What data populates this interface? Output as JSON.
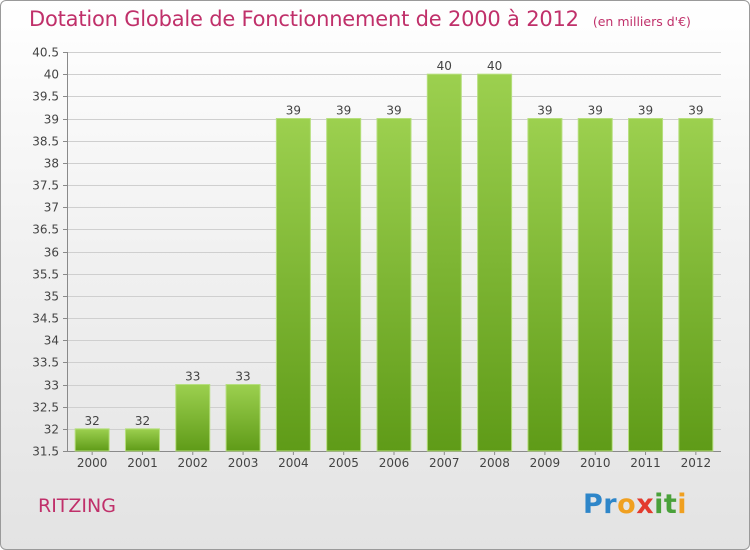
{
  "header": {
    "title": "Dotation Globale de Fonctionnement de 2000 à 2012",
    "unit_note": "(en milliers d'€)"
  },
  "footer": {
    "commune": "RITZING",
    "logo_text": "Proxiti"
  },
  "colors": {
    "title": "#c0306a",
    "bar_light": "#9cd04f",
    "bar_dark": "#5f9b18",
    "logo": [
      "#2e86c9",
      "#f0a020",
      "#e33b2e",
      "#4aa13a"
    ]
  },
  "chart_data": {
    "type": "bar",
    "title": "Dotation Globale de Fonctionnement de 2000 à 2012",
    "subtitle": "(en milliers d'€)",
    "xlabel": "",
    "ylabel": "",
    "categories": [
      "2000",
      "2001",
      "2002",
      "2003",
      "2004",
      "2005",
      "2006",
      "2007",
      "2008",
      "2009",
      "2010",
      "2011",
      "2012"
    ],
    "values": [
      32,
      32,
      33,
      33,
      39,
      39,
      39,
      40,
      40,
      39,
      39,
      39,
      39
    ],
    "data_labels": [
      "32",
      "32",
      "33",
      "33",
      "39",
      "39",
      "39",
      "40",
      "40",
      "39",
      "39",
      "39",
      "39"
    ],
    "ylim": [
      31.5,
      40.5
    ],
    "yticks": [
      31.5,
      32,
      32.5,
      33,
      33.5,
      34,
      34.5,
      35,
      35.5,
      36,
      36.5,
      37,
      37.5,
      38,
      38.5,
      39,
      39.5,
      40,
      40.5
    ],
    "ytick_labels": [
      "31.5",
      "32",
      "32.5",
      "33",
      "33.5",
      "34",
      "34.5",
      "35",
      "35.5",
      "36",
      "36.5",
      "37",
      "37.5",
      "38",
      "38.5",
      "39",
      "39.5",
      "40",
      "40.5"
    ],
    "grid": true,
    "legend": "none"
  }
}
